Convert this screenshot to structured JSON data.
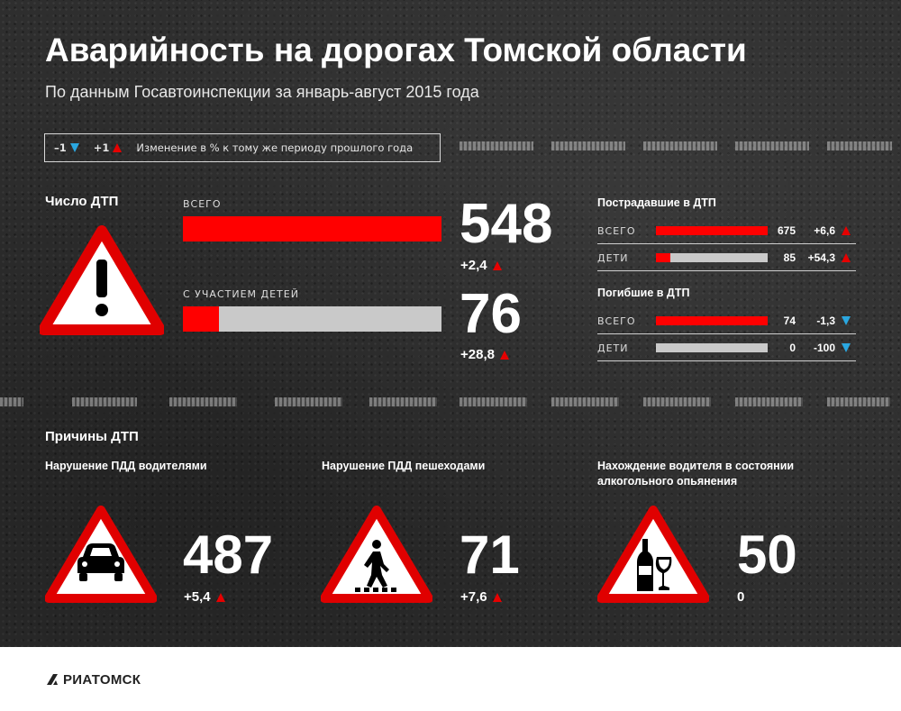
{
  "header": {
    "title": "Аварийность на дорогах Томской области",
    "subtitle": "По данным Госавтоинспекции за январь-август 2015 года"
  },
  "legend": {
    "down_label": "–1",
    "up_label": "+1",
    "text": "Изменение в % к тому же периоду прошлого года",
    "down_icon": "triangle-down-icon",
    "up_icon": "triangle-up-icon"
  },
  "accidents": {
    "title": "Число ДТП",
    "total": {
      "label": "ВСЕГО",
      "value": "548",
      "change": "+2,4",
      "direction": "up",
      "fill": 1.0
    },
    "children": {
      "label": "С УЧАСТИЕМ ДЕТЕЙ",
      "value": "76",
      "change": "+28,8",
      "direction": "up",
      "fill": 0.139
    }
  },
  "injured": {
    "title": "Пострадавшие в ДТП",
    "rows": [
      {
        "label": "ВСЕГО",
        "value": "675",
        "change": "+6,6",
        "direction": "up",
        "fill": 1.0
      },
      {
        "label": "ДЕТИ",
        "value": "85",
        "change": "+54,3",
        "direction": "up",
        "fill": 0.126
      }
    ]
  },
  "killed": {
    "title": "Погибшие в ДТП",
    "rows": [
      {
        "label": "ВСЕГО",
        "value": "74",
        "change": "-1,3",
        "direction": "down",
        "fill": 1.0
      },
      {
        "label": "ДЕТИ",
        "value": "0",
        "change": "-100",
        "direction": "down",
        "fill": 0
      }
    ]
  },
  "causes": {
    "title": "Причины ДТП",
    "items": [
      {
        "label": "Нарушение ПДД водителями",
        "value": "487",
        "change": "+5,4",
        "direction": "up",
        "icon": "car-icon"
      },
      {
        "label": "Нарушение ПДД пешеходами",
        "value": "71",
        "change": "+7,6",
        "direction": "up",
        "icon": "pedestrian-icon"
      },
      {
        "label": "Нахождение водителя в состоянии алкогольного опьянения",
        "value": "50",
        "change": "0",
        "direction": "none",
        "icon": "alcohol-icon"
      }
    ]
  },
  "footer": {
    "logo_text": "РИАТОМСК"
  },
  "colors": {
    "accent": "#ff0000",
    "up": "#e60000",
    "down": "#2aa7e0",
    "bar_track": "#c9c9c9",
    "background": "#2e2e2e"
  }
}
